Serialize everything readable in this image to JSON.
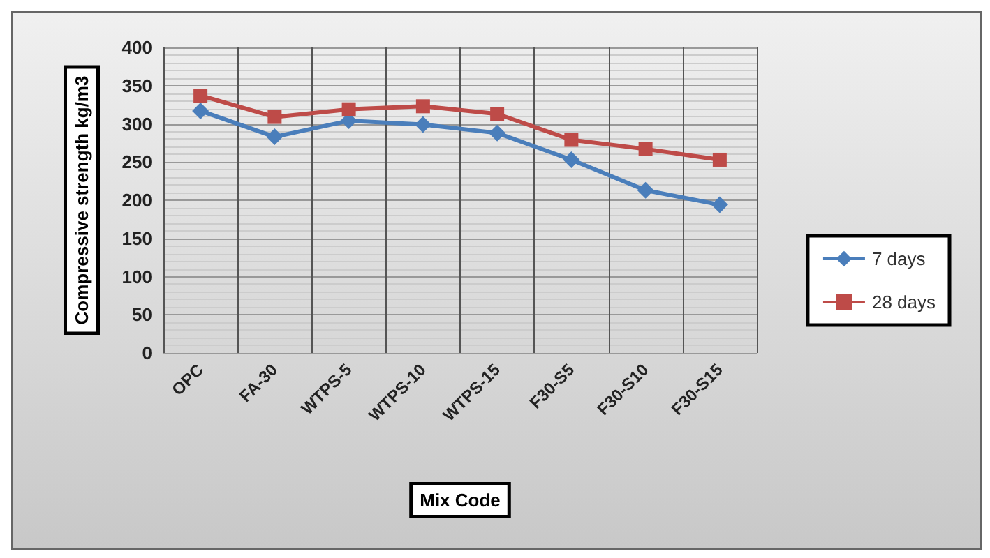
{
  "chart_data": {
    "type": "line",
    "xlabel": "Mix Code",
    "ylabel": "Compressive strength kg/m3",
    "categories": [
      "OPC",
      "FA-30",
      "WTPS-5",
      "WTPS-10",
      "WTPS-15",
      "F30-S5",
      "F30-S10",
      "F30-S15"
    ],
    "series": [
      {
        "name": "7 days",
        "color": "#4a7ebb",
        "marker": "diamond",
        "values": [
          317,
          283,
          304,
          299,
          288,
          253,
          213,
          194
        ]
      },
      {
        "name": "28 days",
        "color": "#be4b48",
        "marker": "square",
        "values": [
          337,
          309,
          319,
          323,
          313,
          279,
          267,
          253
        ]
      }
    ],
    "ylim": [
      0,
      400
    ],
    "yticks": [
      0,
      50,
      100,
      150,
      200,
      250,
      300,
      350,
      400
    ],
    "grid": true,
    "legend": "right",
    "line_style": "solid"
  }
}
